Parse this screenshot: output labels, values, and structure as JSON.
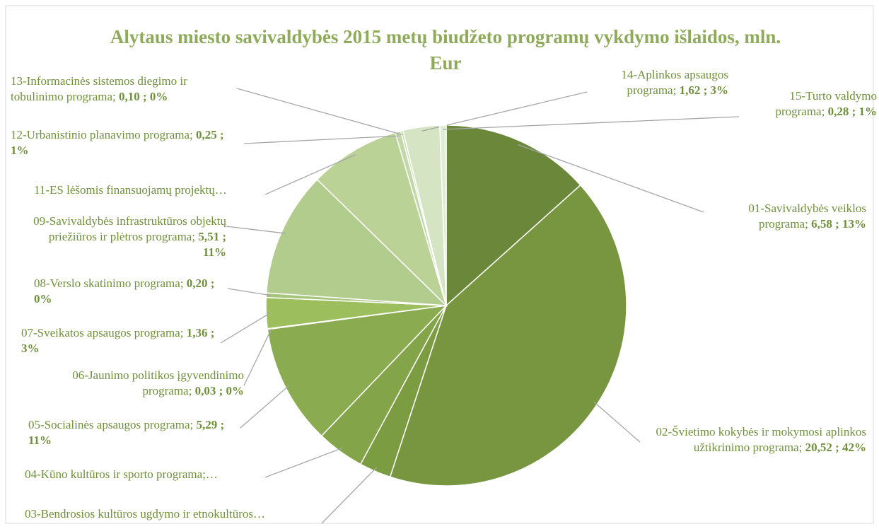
{
  "chart_data": {
    "type": "pie",
    "title": "Alytaus miesto savivaldybės 2015 metų biudžeto programų vykdymo išlaidos, mln. Eur",
    "separator": ";",
    "categories": [
      "01-Savivaldybės veiklos programa",
      "02-Švietimo kokybės ir mokymosi aplinkos užtikrinimo programa",
      "03-Bendrosios kultūros ugdymo ir etnokultūros…",
      "04-Kūno kultūros ir sporto programa;…",
      "05-Socialinės apsaugos programa",
      "06-Jaunimo politikos įgyvendinimo programa",
      "07-Sveikatos apsaugos programa",
      "08-Verslo skatinimo programa",
      "09-Savivaldybės infrastruktūros objektų priežiūros ir plėtros programa",
      "11-ES lėšomis finansuojamų projektų…",
      "12-Urbanistinio planavimo programa",
      "13-Informacinės sistemos diegimo ir tobulinimo programa",
      "14-Aplinkos apsaugos programa",
      "15-Turto valdymo programa"
    ],
    "values": [
      6.58,
      20.52,
      1.4,
      2.1,
      5.29,
      0.03,
      1.36,
      0.2,
      5.51,
      4.0,
      0.25,
      0.1,
      1.62,
      0.28
    ],
    "value_labels": [
      "6,58",
      "20,52",
      null,
      null,
      "5,29",
      "0,03",
      "1,36",
      "0,20",
      "5,51",
      null,
      "0,25",
      "0,10",
      "1,62",
      "0,28"
    ],
    "percent_labels": [
      "13%",
      "42%",
      null,
      null,
      "11%",
      "0%",
      "3%",
      "0%",
      "11%",
      null,
      "1%",
      "0%",
      "3%",
      "1%"
    ],
    "colors": [
      "#6b873a",
      "#77963f",
      "#7c9c42",
      "#83a448",
      "#8aab4f",
      "#90b055",
      "#9cbe5c",
      "#a6c47a",
      "#b2cc8e",
      "#bad296",
      "#c3d8a8",
      "#cadfb3",
      "#d5e5c4",
      "#e0ecd4"
    ]
  }
}
